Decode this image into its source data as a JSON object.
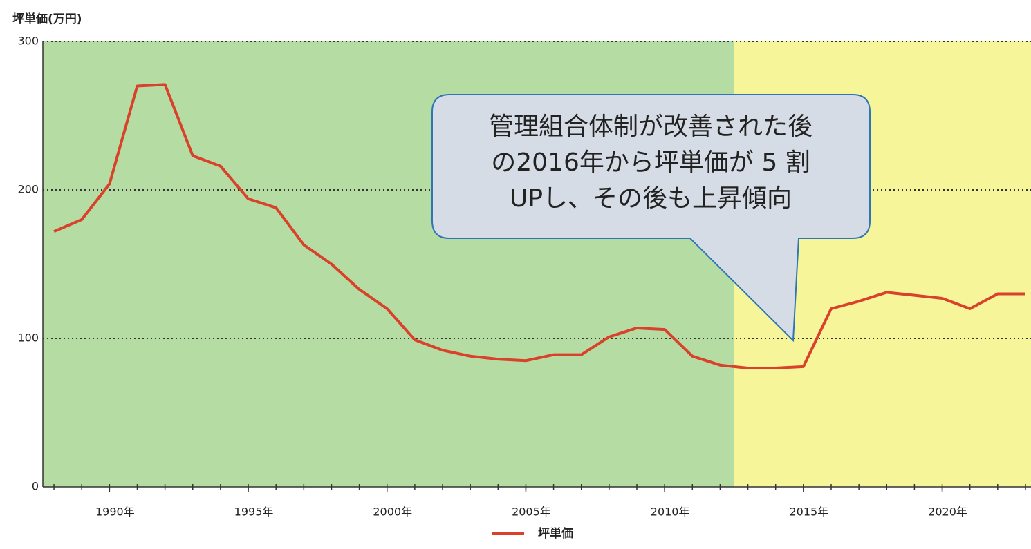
{
  "chart_data": {
    "type": "line",
    "y_axis_label": "坪単価(万円)",
    "x": [
      1988,
      1989,
      1990,
      1991,
      1992,
      1993,
      1994,
      1995,
      1996,
      1997,
      1998,
      1999,
      2000,
      2001,
      2002,
      2003,
      2004,
      2005,
      2006,
      2007,
      2008,
      2009,
      2010,
      2011,
      2012,
      2013,
      2014,
      2015,
      2016,
      2017,
      2018,
      2019,
      2020,
      2021,
      2022,
      2023
    ],
    "series": [
      {
        "name": "坪単価",
        "color": "#d9412b",
        "values": [
          172,
          180,
          204,
          270,
          271,
          223,
          216,
          194,
          188,
          163,
          150,
          133,
          120,
          99,
          92,
          88,
          86,
          85,
          89,
          89,
          101,
          107,
          106,
          88,
          82,
          80,
          80,
          81,
          120,
          125,
          131,
          129,
          127,
          120,
          130,
          130
        ]
      }
    ],
    "xlim": [
      1987.6,
      2023.2
    ],
    "ylim": [
      0,
      300
    ],
    "xticks": [
      {
        "value": 1990,
        "label": "1990年"
      },
      {
        "value": 1995,
        "label": "1995年"
      },
      {
        "value": 2000,
        "label": "2000年"
      },
      {
        "value": 2005,
        "label": "2005年"
      },
      {
        "value": 2010,
        "label": "2010年"
      },
      {
        "value": 2015,
        "label": "2015年"
      },
      {
        "value": 2020,
        "label": "2020年"
      }
    ],
    "yticks": [
      0,
      100,
      200,
      300
    ],
    "grid": true,
    "background_split": {
      "at": 2012.5,
      "before_color": "#b5dca3",
      "after_color": "#f6f59a"
    },
    "annotation": {
      "lines": [
        "管理組合体制が改善された後",
        "の2016年から坪単価が 5 割",
        "UPし、その後も上昇傾向"
      ]
    }
  }
}
